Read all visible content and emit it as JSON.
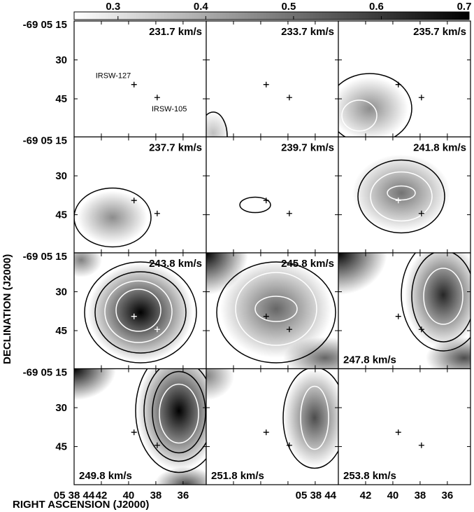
{
  "chart_data": {
    "type": "heatmap",
    "figure": "channel maps",
    "xlabel": "RIGHT ASCENSION (J2000)",
    "ylabel": "DECLINATION (J2000)",
    "colorbar": {
      "ticks": [
        "0.3",
        "0.4",
        "0.5",
        "0.6",
        "0.7"
      ],
      "range": [
        0.25,
        0.7
      ],
      "colormap": "greyscale"
    },
    "x_ticks_top_left": "05 38 44",
    "x_ticks": [
      "42",
      "40",
      "38",
      "36"
    ],
    "x_ticks_repeat": "05 38 44",
    "y_ticks_first": "-69 05 15",
    "y_ticks": [
      "30",
      "45"
    ],
    "sources": [
      {
        "name": "IRSW-127",
        "ra_s": 39.6,
        "dec_s": 39.5
      },
      {
        "name": "IRSW-105",
        "ra_s": 37.9,
        "dec_s": 44.5
      }
    ],
    "panels": [
      {
        "velocity": "231.7 km/s",
        "label_pos": "top"
      },
      {
        "velocity": "233.7 km/s",
        "label_pos": "top"
      },
      {
        "velocity": "235.7 km/s",
        "label_pos": "top"
      },
      {
        "velocity": "237.7 km/s",
        "label_pos": "top"
      },
      {
        "velocity": "239.7 km/s",
        "label_pos": "top"
      },
      {
        "velocity": "241.8 km/s",
        "label_pos": "top"
      },
      {
        "velocity": "243.8 km/s",
        "label_pos": "top"
      },
      {
        "velocity": "245.8 km/s",
        "label_pos": "top"
      },
      {
        "velocity": "247.8 km/s",
        "label_pos": "bottom"
      },
      {
        "velocity": "249.8 km/s",
        "label_pos": "bottom"
      },
      {
        "velocity": "251.8 km/s",
        "label_pos": "bottom"
      },
      {
        "velocity": "253.8 km/s",
        "label_pos": "bottom"
      }
    ]
  }
}
